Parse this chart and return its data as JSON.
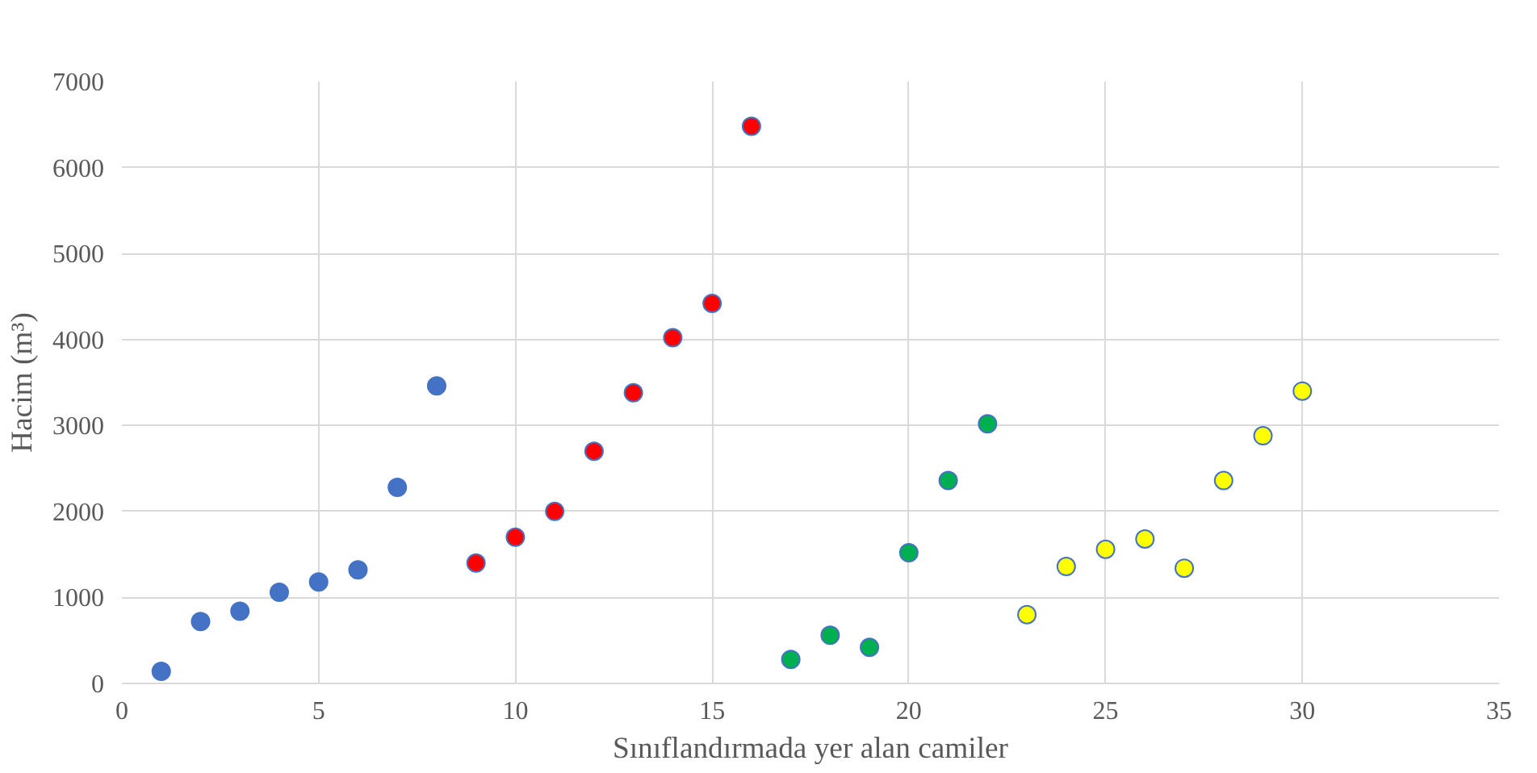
{
  "chart_data": {
    "type": "scatter",
    "xlabel": "Sınıflandırmada yer alan camiler",
    "ylabel": "Hacim (m³)",
    "xlim": [
      0,
      35
    ],
    "xticks": [
      0,
      5,
      10,
      15,
      20,
      25,
      30,
      35
    ],
    "ylim": [
      0,
      7000
    ],
    "yticks": [
      0,
      1000,
      2000,
      3000,
      4000,
      5000,
      6000,
      7000
    ],
    "grid": true,
    "marker": "circle",
    "series": [
      {
        "color": "#4472c4",
        "x": [
          1,
          2,
          3,
          4,
          5,
          6,
          7,
          8
        ],
        "values": [
          140,
          720,
          840,
          1060,
          1180,
          1320,
          2280,
          3460
        ]
      },
      {
        "color": "#ff0000",
        "x": [
          9,
          10,
          11,
          12,
          13,
          14,
          15,
          16
        ],
        "values": [
          1400,
          1700,
          2000,
          2700,
          3380,
          4020,
          4420,
          6480
        ]
      },
      {
        "color": "#00b050",
        "x": [
          17,
          18,
          19,
          20,
          21,
          22
        ],
        "values": [
          280,
          560,
          420,
          1520,
          2360,
          3020
        ]
      },
      {
        "color": "#ffff00",
        "x": [
          23,
          24,
          25,
          26,
          27,
          28,
          29,
          30
        ],
        "values": [
          800,
          1360,
          1560,
          1680,
          1340,
          2360,
          2880,
          3400
        ]
      }
    ]
  }
}
